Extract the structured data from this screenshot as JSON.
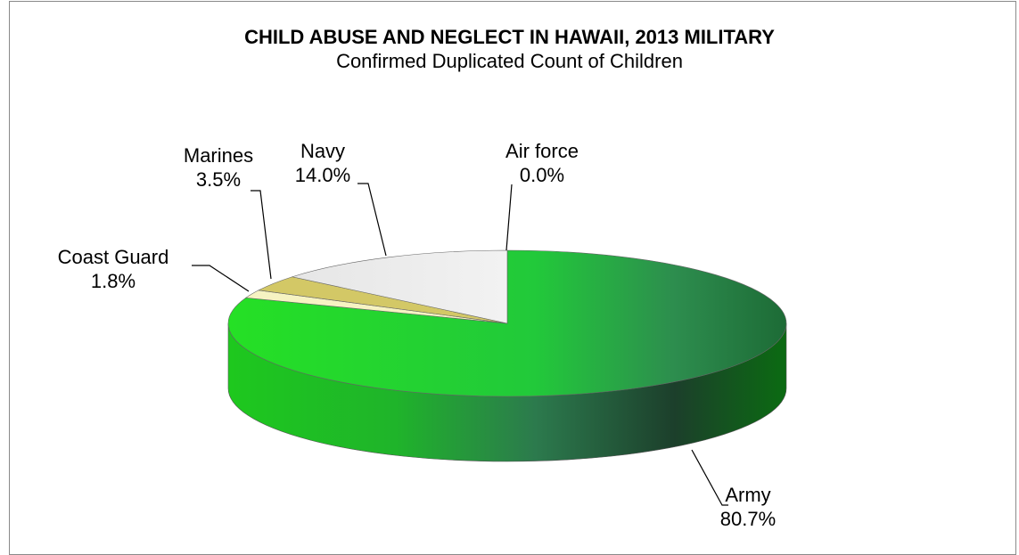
{
  "chart_data": {
    "type": "pie",
    "title": "CHILD ABUSE AND NEGLECT IN HAWAII, 2013 MILITARY",
    "subtitle": "Confirmed Duplicated Count of Children",
    "style": "3d",
    "slices": [
      {
        "label": "Army",
        "value": 80.7,
        "display": "80.7%",
        "color": "#1fc91f"
      },
      {
        "label": "Coast Guard",
        "value": 1.8,
        "display": "1.8%",
        "color": "#f6f3c2"
      },
      {
        "label": "Marines",
        "value": 3.5,
        "display": "3.5%",
        "color": "#d3c866"
      },
      {
        "label": "Navy",
        "value": 14.0,
        "display": "14.0%",
        "color": "#ececec"
      },
      {
        "label": "Air force",
        "value": 0.0,
        "display": "0.0%",
        "color": "#9fb0d6"
      }
    ]
  }
}
